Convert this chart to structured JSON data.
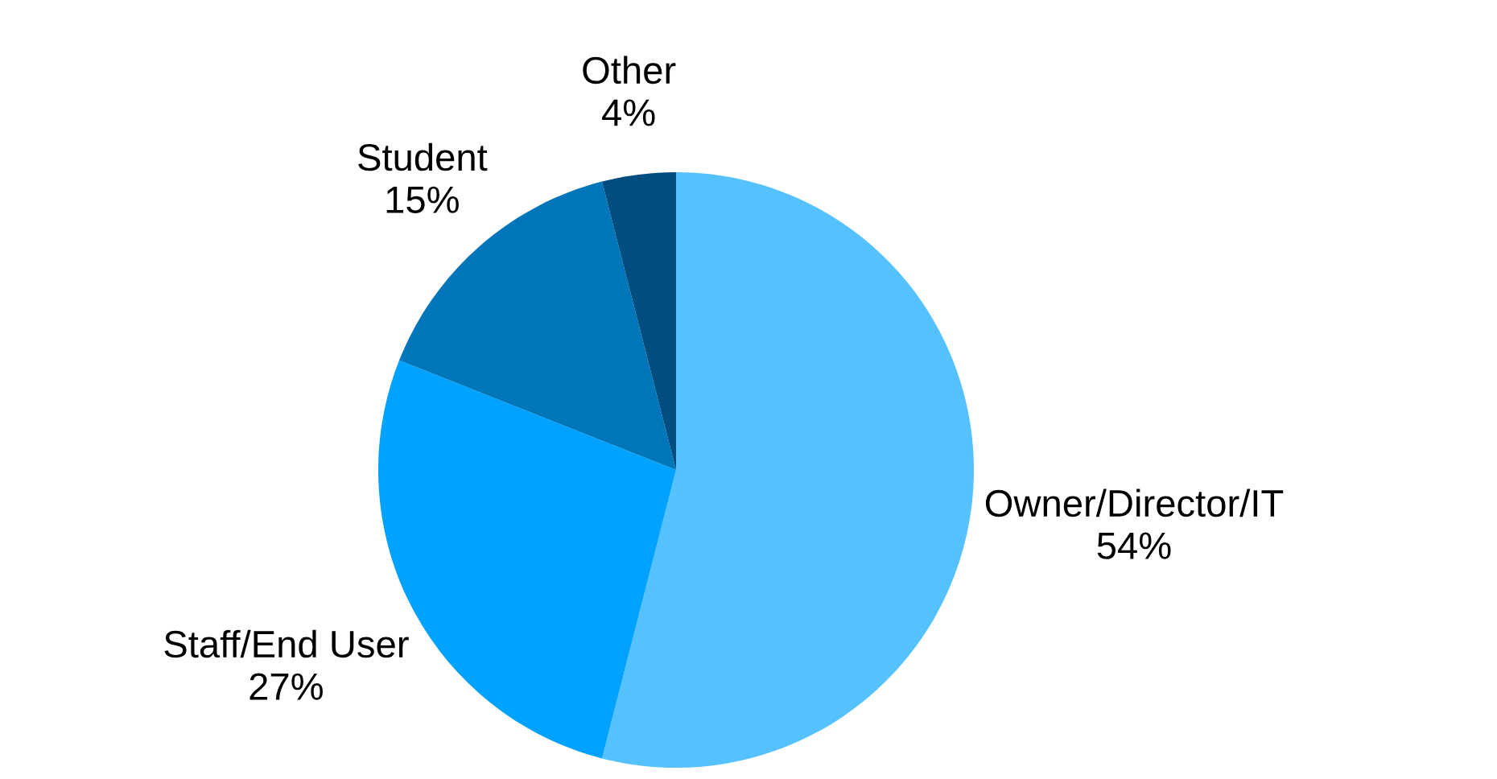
{
  "chart_data": {
    "type": "pie",
    "categories": [
      "Owner/Director/IT",
      "Staff/End User",
      "Student",
      "Other"
    ],
    "values": [
      54,
      27,
      15,
      4
    ],
    "colors": [
      "#56c1ff",
      "#00a2ff",
      "#0076ba",
      "#004d80"
    ],
    "value_labels": [
      "54%",
      "27%",
      "15%",
      "4%"
    ]
  }
}
